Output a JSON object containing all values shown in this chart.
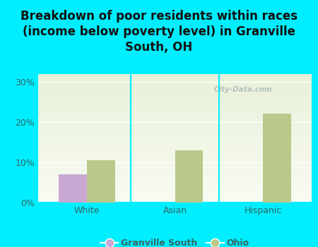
{
  "title": "Breakdown of poor residents within races\n(income below poverty level) in Granville\nSouth, OH",
  "categories": [
    "White",
    "Asian",
    "Hispanic"
  ],
  "granville_south": [
    7.0,
    0,
    0
  ],
  "ohio": [
    10.5,
    13.0,
    22.2
  ],
  "granville_south_color": "#c9a8d4",
  "ohio_color": "#b8c98a",
  "background_color": "#00eeff",
  "plot_bg_top": "#e8f0d8",
  "plot_bg_bottom": "#f8fbf2",
  "yticks": [
    0,
    10,
    20,
    30
  ],
  "ytick_labels": [
    "0%",
    "10%",
    "20%",
    "30%"
  ],
  "ylim": [
    0,
    32
  ],
  "bar_width": 0.32,
  "title_fontsize": 12,
  "tick_fontsize": 9,
  "legend_fontsize": 9,
  "legend_label_1": "Granville South",
  "legend_label_2": "Ohio",
  "watermark": "City-Data.com",
  "title_color": "#111111",
  "tick_color": "#336666",
  "separator_color": "#00eeff"
}
